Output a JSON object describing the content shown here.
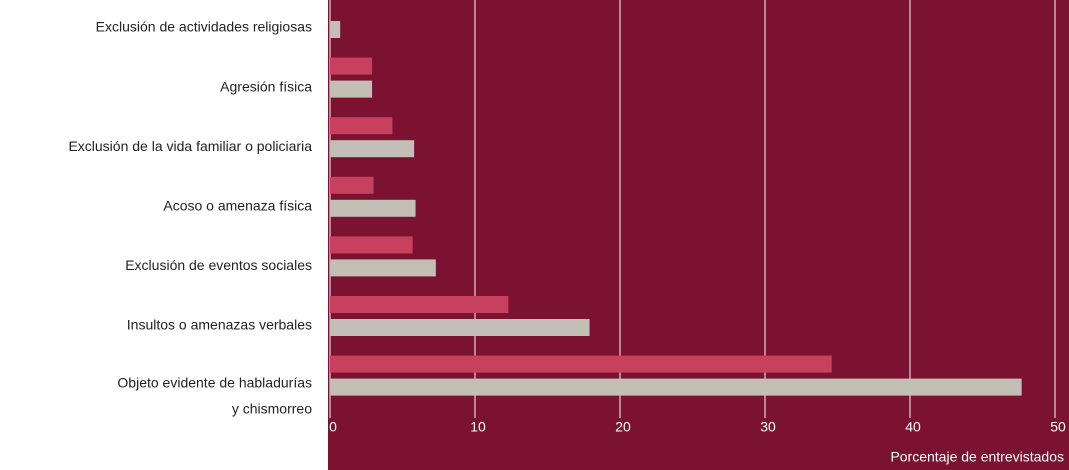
{
  "chart_data": {
    "type": "hbar",
    "categories": [
      "Exclusión de actividades religiosas",
      "Agresión física",
      "Exclusión de la vida familiar o policiaria",
      "Acoso o amenaza física",
      "Exclusión de eventos sociales",
      "Insultos o amenazas verbales",
      "Objeto evidente de habladurías\ny chismorreo"
    ],
    "series": [
      {
        "color": "#c7415f",
        "values": [
          0,
          2.9,
          4.3,
          3,
          5.7,
          12.3,
          34.6
        ]
      },
      {
        "color": "#c3bfb6",
        "values": [
          0.7,
          2.9,
          5.8,
          5.9,
          7.3,
          17.9,
          47.7
        ]
      }
    ],
    "xlim": [
      0,
      50
    ],
    "xticks": [
      0,
      10,
      20,
      30,
      40,
      50
    ],
    "xlabel": "Porcentaje de entrevistados",
    "background": "#7b1232",
    "grid": true
  }
}
